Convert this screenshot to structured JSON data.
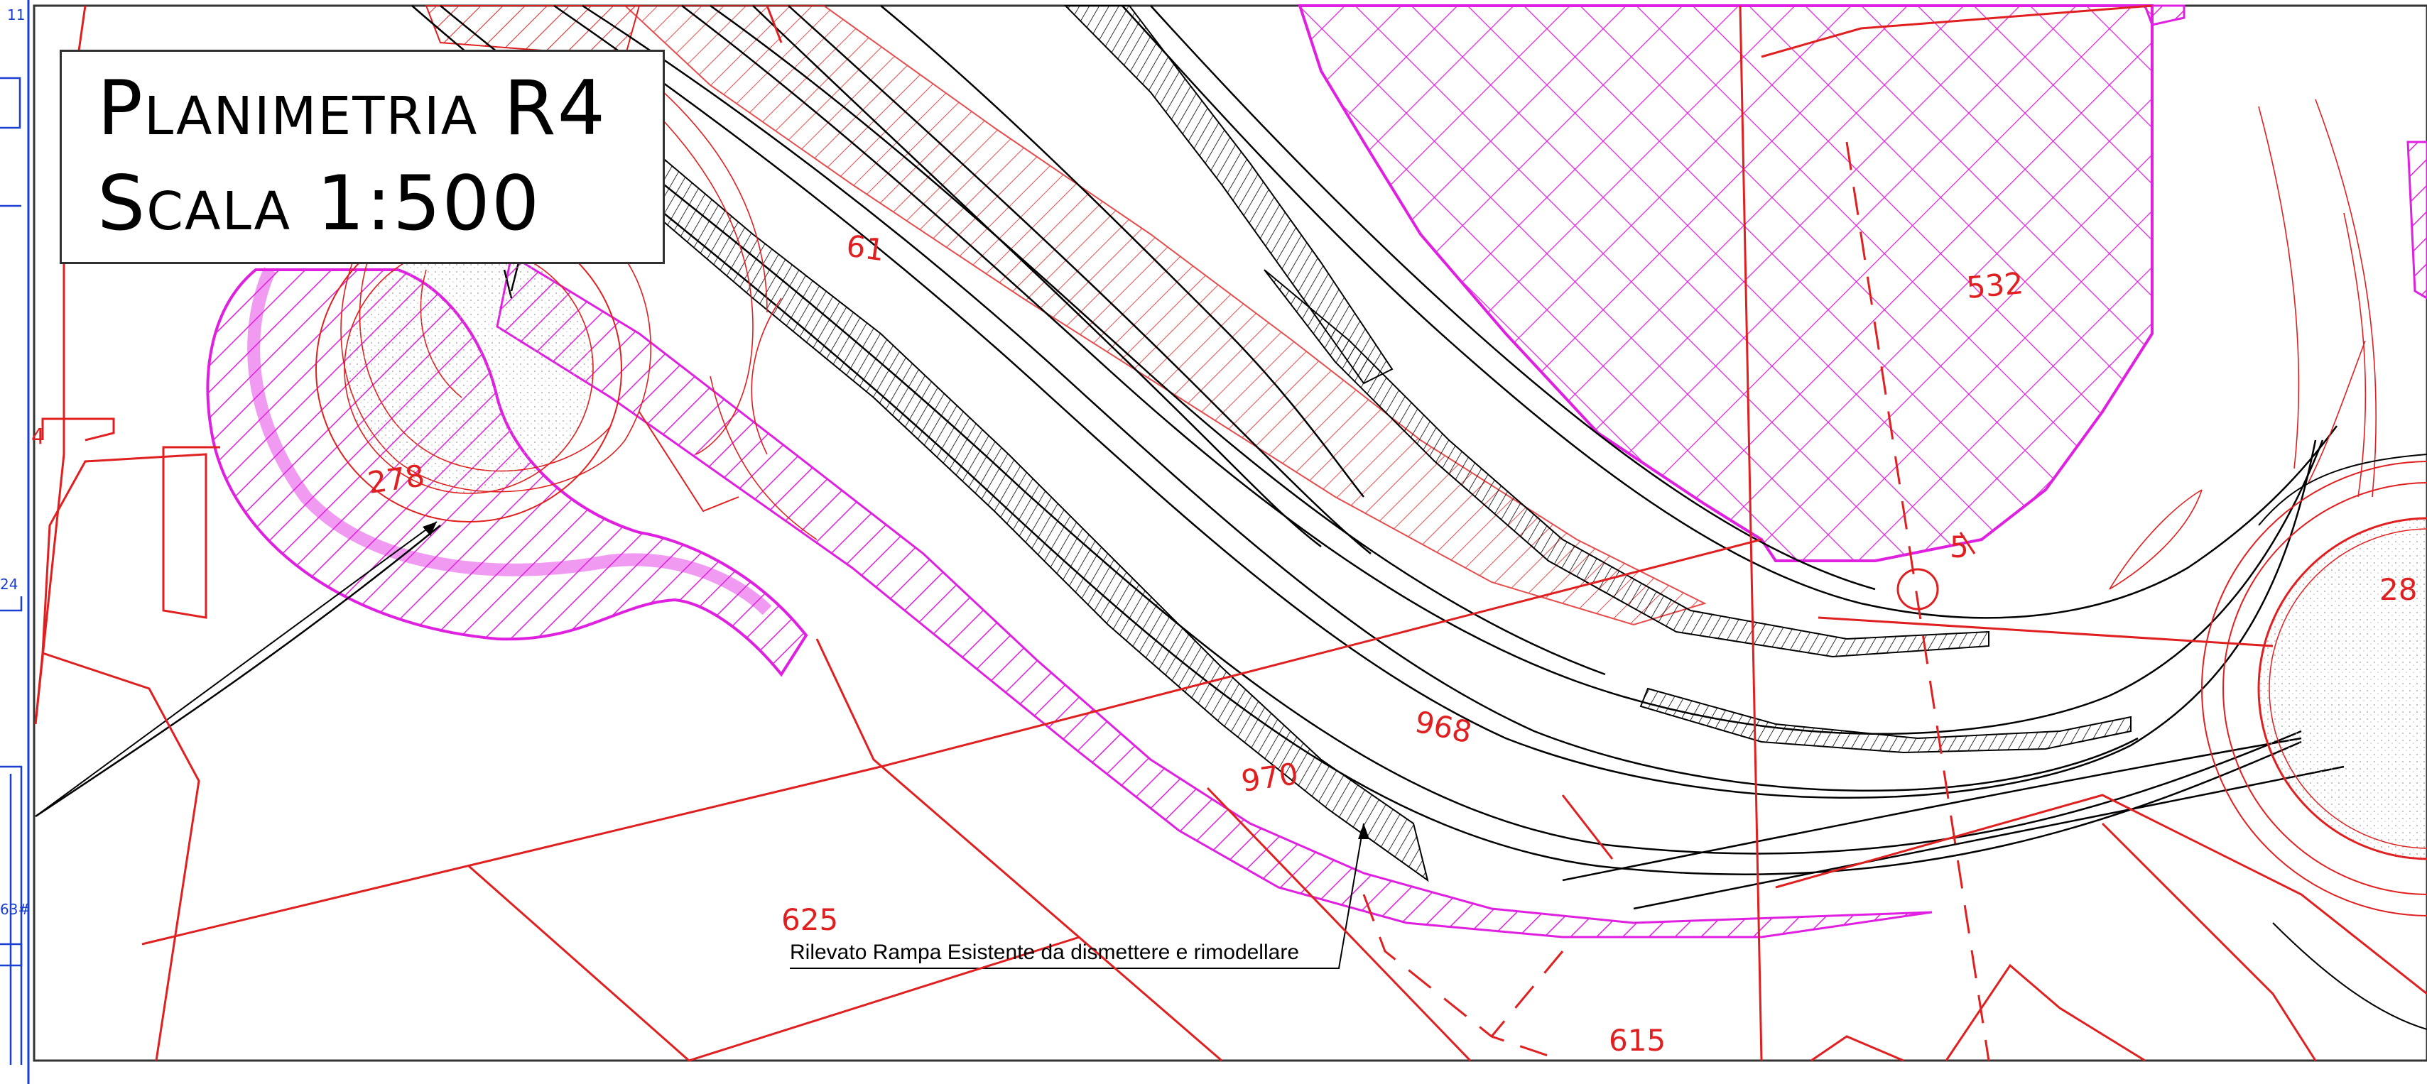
{
  "title": {
    "line1": "Planimetria R4",
    "line2": "Scala 1:500"
  },
  "callout": {
    "text": "Rilevato Rampa Esistente da dismettere e rimodellare"
  },
  "parcels": [
    {
      "id": "p278",
      "label": "278"
    },
    {
      "id": "p532",
      "label": "532"
    },
    {
      "id": "p968",
      "label": "968"
    },
    {
      "id": "p970",
      "label": "970"
    },
    {
      "id": "p625",
      "label": "625"
    },
    {
      "id": "p615",
      "label": "615"
    },
    {
      "id": "p61",
      "label": "61"
    },
    {
      "id": "p28",
      "label": "28"
    },
    {
      "id": "p5",
      "label": "5"
    }
  ],
  "edge_labels": [
    {
      "id": "e11",
      "label": "11"
    },
    {
      "id": "e24",
      "label": "24"
    },
    {
      "id": "e63",
      "label": "63#"
    },
    {
      "id": "e4",
      "label": "4"
    }
  ],
  "colors": {
    "cadastral": "#e02020",
    "road": "#000000",
    "hatch_magenta": "#e020e0",
    "edge_blue": "#1a3fd0",
    "background": "#ffffff"
  }
}
